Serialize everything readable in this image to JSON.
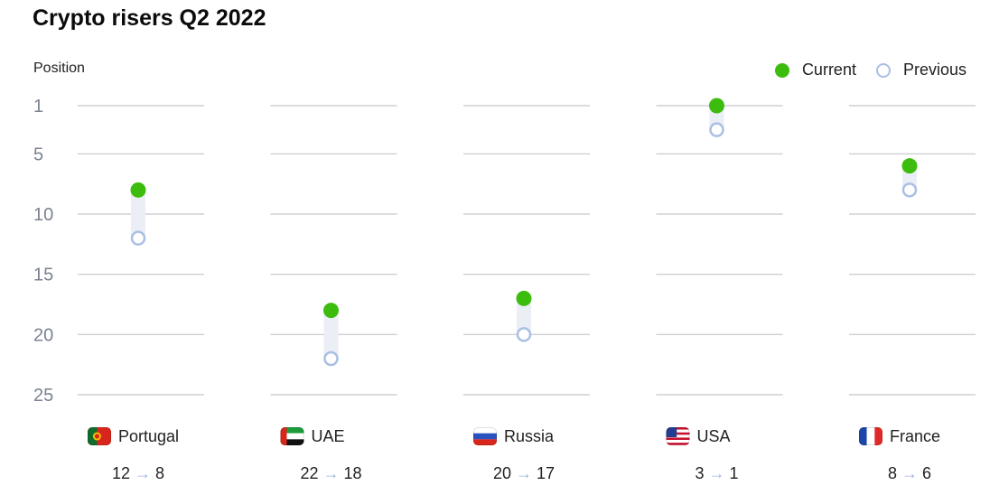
{
  "title": "Crypto risers Q2 2022",
  "legend": {
    "current": "Current",
    "previous": "Previous"
  },
  "colors": {
    "current": "#3cbd0e",
    "previous": "#a9bfe3",
    "connector": "#eceef6",
    "grid": "#c4c6cc"
  },
  "chart_data": {
    "type": "dot-plot",
    "title": "Crypto risers Q2 2022",
    "ylabel": "Position",
    "yticks": [
      1,
      5,
      10,
      15,
      20,
      25
    ],
    "ylim": [
      1,
      25
    ],
    "y_reversed": true,
    "grid": true,
    "legend_position": "top-right",
    "arrow": "→",
    "categories": [
      {
        "name": "Portugal",
        "flag": "portugal-flag",
        "previous": 12,
        "current": 8
      },
      {
        "name": "UAE",
        "flag": "uae-flag",
        "previous": 22,
        "current": 18
      },
      {
        "name": "Russia",
        "flag": "russia-flag",
        "previous": 20,
        "current": 17
      },
      {
        "name": "USA",
        "flag": "usa-flag",
        "previous": 3,
        "current": 1
      },
      {
        "name": "France",
        "flag": "france-flag",
        "previous": 8,
        "current": 6
      }
    ]
  }
}
